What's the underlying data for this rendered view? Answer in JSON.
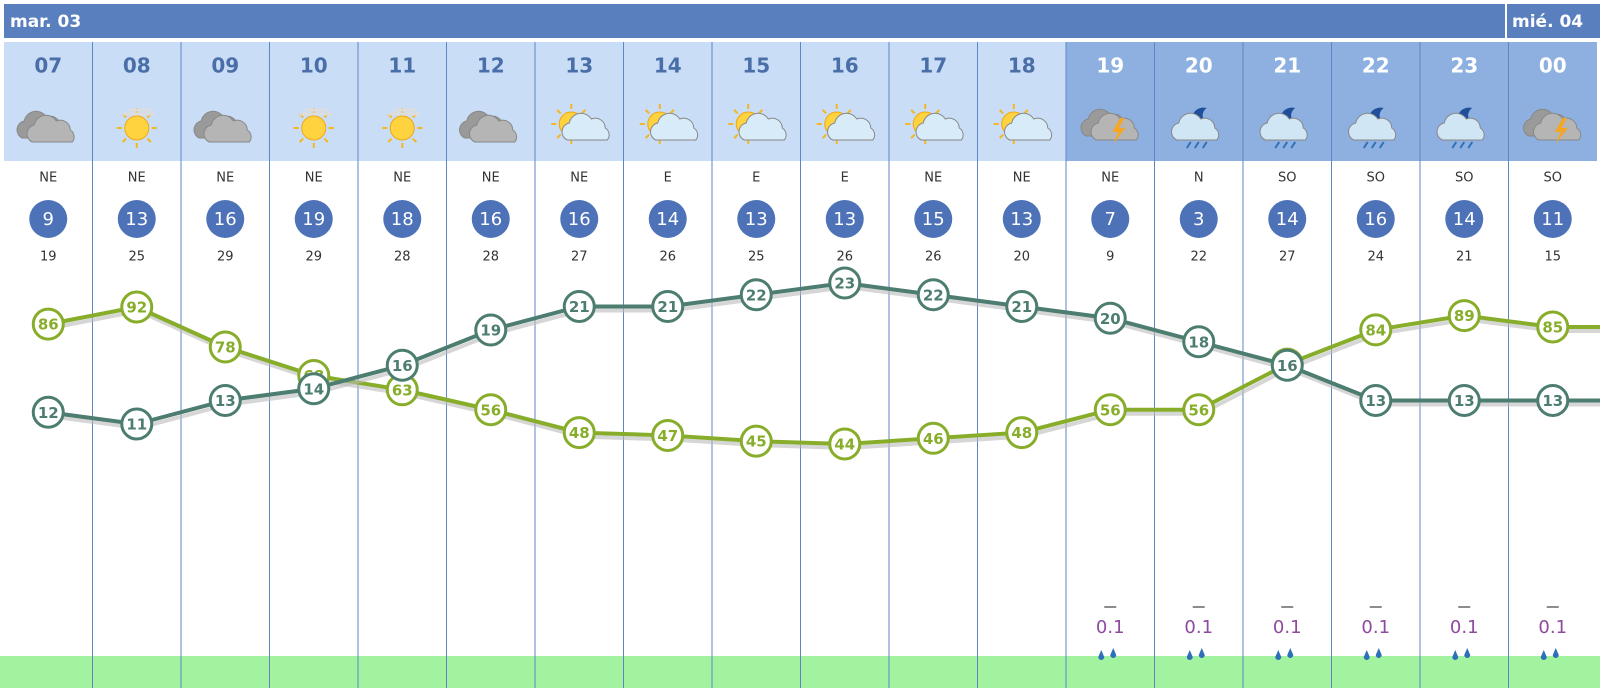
{
  "header": {
    "days": [
      "mar. 03",
      "mié. 04"
    ]
  },
  "hours": [
    {
      "hour": "07",
      "sky": "cloudy",
      "wind_dir": "NE",
      "wind": 9,
      "gust": 19,
      "temp": 12,
      "humidity": 86
    },
    {
      "hour": "08",
      "sky": "haze",
      "wind_dir": "NE",
      "wind": 13,
      "gust": 25,
      "temp": 11,
      "humidity": 92
    },
    {
      "hour": "09",
      "sky": "cloudy",
      "wind_dir": "NE",
      "wind": 16,
      "gust": 29,
      "temp": 13,
      "humidity": 78
    },
    {
      "hour": "10",
      "sky": "haze",
      "wind_dir": "NE",
      "wind": 19,
      "gust": 29,
      "temp": 14,
      "humidity": 68
    },
    {
      "hour": "11",
      "sky": "haze",
      "wind_dir": "NE",
      "wind": 18,
      "gust": 28,
      "temp": 16,
      "humidity": 63
    },
    {
      "hour": "12",
      "sky": "cloudy",
      "wind_dir": "NE",
      "wind": 16,
      "gust": 28,
      "temp": 19,
      "humidity": 56
    },
    {
      "hour": "13",
      "sky": "partly",
      "wind_dir": "NE",
      "wind": 16,
      "gust": 27,
      "temp": 21,
      "humidity": 48
    },
    {
      "hour": "14",
      "sky": "partly",
      "wind_dir": "E",
      "wind": 14,
      "gust": 26,
      "temp": 21,
      "humidity": 47
    },
    {
      "hour": "15",
      "sky": "partly",
      "wind_dir": "E",
      "wind": 13,
      "gust": 25,
      "temp": 22,
      "humidity": 45
    },
    {
      "hour": "16",
      "sky": "partly",
      "wind_dir": "E",
      "wind": 13,
      "gust": 26,
      "temp": 23,
      "humidity": 44
    },
    {
      "hour": "17",
      "sky": "partly",
      "wind_dir": "NE",
      "wind": 15,
      "gust": 26,
      "temp": 22,
      "humidity": 46
    },
    {
      "hour": "18",
      "sky": "partly",
      "wind_dir": "NE",
      "wind": 13,
      "gust": 20,
      "temp": 21,
      "humidity": 48
    },
    {
      "hour": "19",
      "sky": "storm",
      "wind_dir": "NE",
      "wind": 7,
      "gust": 9,
      "temp": 20,
      "humidity": 56,
      "precip": 0.1
    },
    {
      "hour": "20",
      "sky": "night-rain",
      "wind_dir": "N",
      "wind": 3,
      "gust": 22,
      "temp": 18,
      "humidity": 56,
      "precip": 0.1
    },
    {
      "hour": "21",
      "sky": "night-rain",
      "wind_dir": "SO",
      "wind": 14,
      "gust": 27,
      "temp": 16,
      "humidity": 72,
      "precip": 0.1
    },
    {
      "hour": "22",
      "sky": "night-rain",
      "wind_dir": "SO",
      "wind": 16,
      "gust": 24,
      "temp": 13,
      "humidity": 84,
      "precip": 0.1
    },
    {
      "hour": "23",
      "sky": "night-rain",
      "wind_dir": "SO",
      "wind": 14,
      "gust": 21,
      "temp": 13,
      "humidity": 89,
      "precip": 0.1
    },
    {
      "hour": "00",
      "sky": "storm",
      "wind_dir": "SO",
      "wind": 11,
      "gust": 15,
      "temp": 13,
      "humidity": 85,
      "precip": 0.1
    }
  ]
}
